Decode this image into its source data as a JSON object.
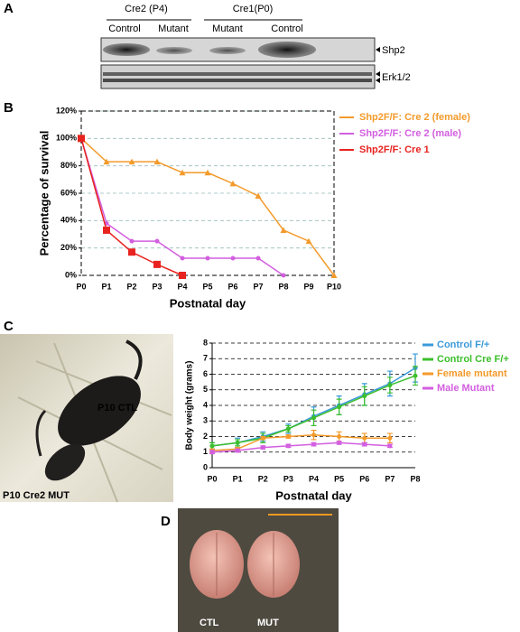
{
  "panel_labels": [
    "A",
    "B",
    "C",
    "D"
  ],
  "blot": {
    "groups": [
      "Cre2 (P4)",
      "Cre1(P0)"
    ],
    "lanes": [
      "Control",
      "Mutant",
      "Mutant",
      "Control"
    ],
    "bands": [
      "Shp2",
      "Erk1/2"
    ]
  },
  "photo_c": {
    "labels": [
      "P10 CTL",
      "P10 Cre2 MUT"
    ]
  },
  "photo_d": {
    "labels": [
      "CTL",
      "MUT"
    ]
  },
  "chart_data": [
    {
      "type": "line",
      "xlabel": "Postnatal day",
      "ylabel": "Percentage of survival",
      "categories": [
        "P0",
        "P1",
        "P2",
        "P3",
        "P4",
        "P5",
        "P6",
        "P7",
        "P8",
        "P9",
        "P10"
      ],
      "ylim": [
        0,
        120
      ],
      "yticks": [
        {
          "value": 0,
          "label": "0%"
        },
        {
          "value": 20,
          "label": "20%"
        },
        {
          "value": 40,
          "label": "40%"
        },
        {
          "value": 60,
          "label": "60%"
        },
        {
          "value": 80,
          "label": "80%"
        },
        {
          "value": 100,
          "label": "100%"
        },
        {
          "value": 120,
          "label": "120%"
        }
      ],
      "grid": true,
      "series": [
        {
          "name": "Shp2F/F: Cre 2 (female)",
          "color": "#f39a2b",
          "marker": "triangle",
          "values": [
            100,
            83,
            83,
            83,
            75,
            75,
            67,
            58,
            33,
            25,
            0
          ]
        },
        {
          "name": "Shp2F/F: Cre 2 (male)",
          "color": "#d35ee0",
          "marker": "circle",
          "values": [
            100,
            38,
            25,
            25,
            12.5,
            12.5,
            12.5,
            12.5,
            0,
            null,
            null
          ]
        },
        {
          "name": "Shp2F/F: Cre 1",
          "color": "#e8231f",
          "marker": "square",
          "values": [
            100,
            33,
            17,
            8,
            0,
            null,
            null,
            null,
            null,
            null,
            null
          ]
        }
      ]
    },
    {
      "type": "line",
      "xlabel": "Postnatal day",
      "ylabel": "Body weight (grams)",
      "categories": [
        "P0",
        "P1",
        "P2",
        "P3",
        "P4",
        "P5",
        "P6",
        "P7",
        "P8"
      ],
      "ylim": [
        0,
        8
      ],
      "yticks": [
        0,
        1,
        2,
        3,
        4,
        5,
        6,
        7,
        8
      ],
      "grid": true,
      "series": [
        {
          "name": "Control F/+",
          "color": "#3a9ad9",
          "marker": "circle",
          "values": [
            1.4,
            1.6,
            2.0,
            2.5,
            3.3,
            4.0,
            4.7,
            5.4,
            6.4
          ],
          "errors": [
            0.2,
            0.3,
            0.3,
            0.3,
            0.6,
            0.6,
            0.7,
            0.8,
            0.9
          ]
        },
        {
          "name": "Control Cre F/+",
          "color": "#3cbf2c",
          "marker": "circle",
          "values": [
            1.4,
            1.6,
            1.9,
            2.5,
            3.2,
            3.9,
            4.6,
            5.3,
            5.9
          ],
          "errors": [
            0.2,
            0.2,
            0.3,
            0.2,
            0.5,
            0.5,
            0.6,
            0.5,
            0.6
          ]
        },
        {
          "name": "Female mutant",
          "color": "#f39a2b",
          "marker": "circle",
          "values": [
            1.1,
            1.2,
            1.9,
            2.0,
            2.1,
            2.0,
            1.9,
            1.9,
            null
          ],
          "errors": [
            0.1,
            0.1,
            0.1,
            0.1,
            0.3,
            0.3,
            0.3,
            0.3,
            null
          ]
        },
        {
          "name": "Male Mutant",
          "color": "#d35ee0",
          "marker": "circle",
          "values": [
            1.0,
            1.1,
            1.3,
            1.4,
            1.5,
            1.6,
            1.5,
            1.4,
            null
          ],
          "errors": [
            0.1,
            0.1,
            0.1,
            0.1,
            0.1,
            0.1,
            0.1,
            0.1,
            null
          ]
        }
      ]
    }
  ]
}
